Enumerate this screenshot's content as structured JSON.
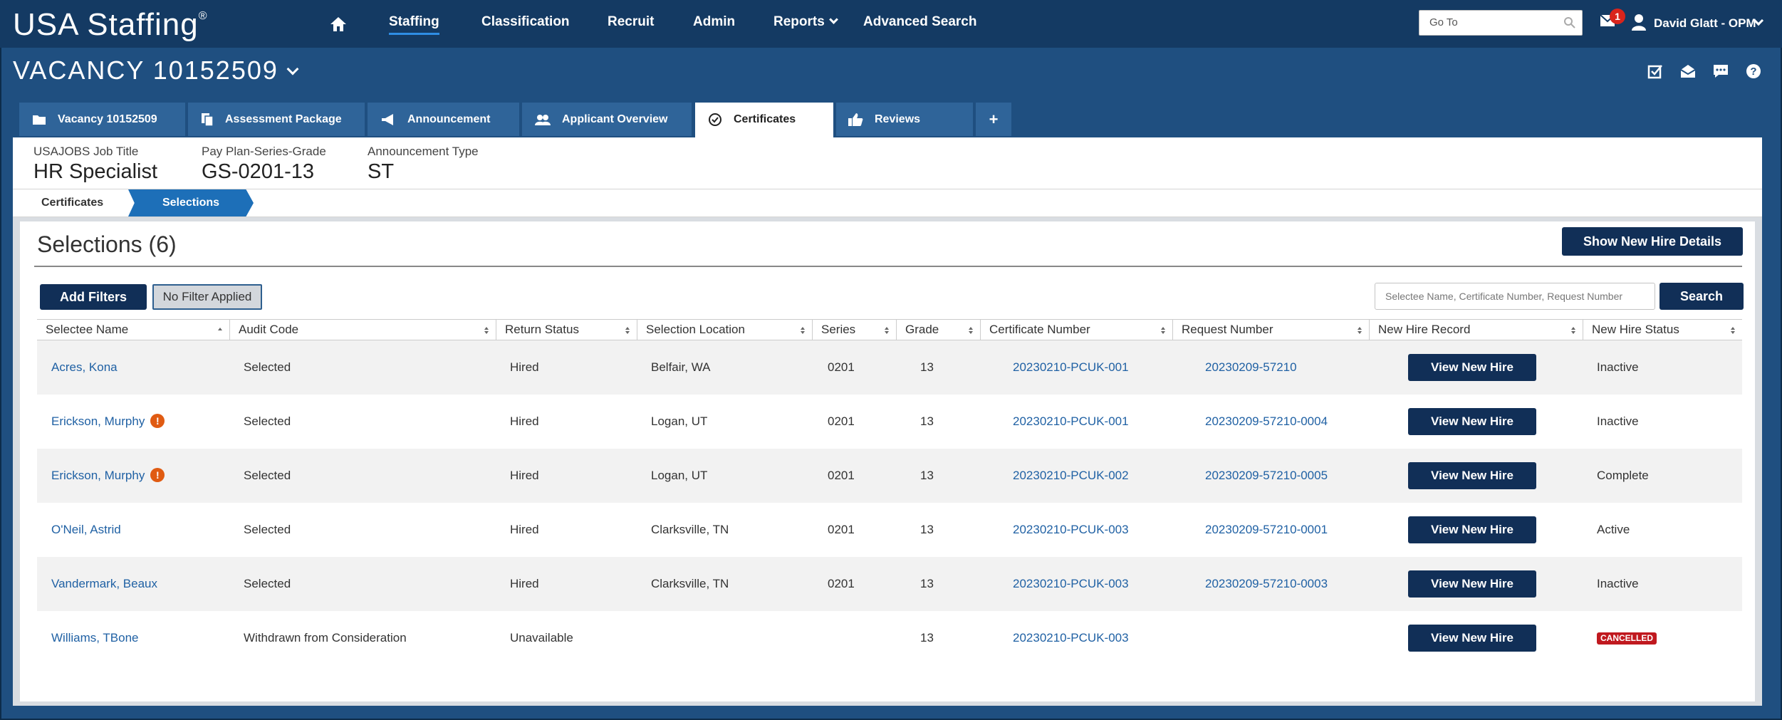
{
  "app": {
    "logo": "USA Staffing",
    "logo_mark": "®"
  },
  "nav": {
    "items": [
      {
        "label": "Staffing"
      },
      {
        "label": "Classification"
      },
      {
        "label": "Recruit"
      },
      {
        "label": "Admin"
      },
      {
        "label": "Reports"
      },
      {
        "label": "Advanced Search"
      }
    ],
    "active": "Staffing",
    "goto_placeholder": "Go To",
    "mail_badge": "1",
    "user": "David Glatt - OPM"
  },
  "vacancy": {
    "title": "VACANCY 10152509"
  },
  "header_icons": [
    "checkbox-icon",
    "mail-open-icon",
    "chat-icon",
    "help-icon"
  ],
  "tabs": [
    {
      "label": "Vacancy 10152509",
      "icon": "folder-icon"
    },
    {
      "label": "Assessment Package",
      "icon": "documents-icon"
    },
    {
      "label": "Announcement",
      "icon": "megaphone-icon"
    },
    {
      "label": "Applicant Overview",
      "icon": "users-icon"
    },
    {
      "label": "Certificates",
      "icon": "check-circle-icon"
    },
    {
      "label": "Reviews",
      "icon": "thumbs-up-icon"
    },
    {
      "label": "+",
      "icon": "plus-icon"
    }
  ],
  "active_tab": "Certificates",
  "info": {
    "job_title_label": "USAJOBS Job Title",
    "job_title": "HR Specialist",
    "pay_plan_label": "Pay Plan-Series-Grade",
    "pay_plan": "GS-0201-13",
    "announcement_type_label": "Announcement Type",
    "announcement_type": "ST"
  },
  "breadcrumb": {
    "first": "Certificates",
    "active": "Selections"
  },
  "selections": {
    "title": "Selections (6)",
    "show_new_hire_details": "Show New Hire Details",
    "add_filters": "Add Filters",
    "no_filter": "No Filter Applied",
    "search_placeholder": "Selectee Name, Certificate Number, Request Number",
    "search_button": "Search"
  },
  "table": {
    "columns": [
      "Selectee Name",
      "Audit Code",
      "Return Status",
      "Selection Location",
      "Series",
      "Grade",
      "Certificate Number",
      "Request Number",
      "New Hire Record",
      "New Hire Status"
    ],
    "button_label": "View New Hire",
    "rows": [
      {
        "name": "Acres, Kona",
        "alert": false,
        "audit": "Selected",
        "return": "Hired",
        "location": "Belfair, WA",
        "series": "0201",
        "grade": "13",
        "cert": "20230210-PCUK-001",
        "request": "20230209-57210",
        "status": "Inactive"
      },
      {
        "name": "Erickson, Murphy",
        "alert": true,
        "audit": "Selected",
        "return": "Hired",
        "location": "Logan, UT",
        "series": "0201",
        "grade": "13",
        "cert": "20230210-PCUK-001",
        "request": "20230209-57210-0004",
        "status": "Inactive"
      },
      {
        "name": "Erickson, Murphy",
        "alert": true,
        "audit": "Selected",
        "return": "Hired",
        "location": "Logan, UT",
        "series": "0201",
        "grade": "13",
        "cert": "20230210-PCUK-002",
        "request": "20230209-57210-0005",
        "status": "Complete"
      },
      {
        "name": "O'Neil, Astrid",
        "alert": false,
        "audit": "Selected",
        "return": "Hired",
        "location": "Clarksville, TN",
        "series": "0201",
        "grade": "13",
        "cert": "20230210-PCUK-003",
        "request": "20230209-57210-0001",
        "status": "Active"
      },
      {
        "name": "Vandermark, Beaux",
        "alert": false,
        "audit": "Selected",
        "return": "Hired",
        "location": "Clarksville, TN",
        "series": "0201",
        "grade": "13",
        "cert": "20230210-PCUK-003",
        "request": "20230209-57210-0003",
        "status": "Inactive"
      },
      {
        "name": "Williams, TBone",
        "alert": false,
        "audit": "Withdrawn from Consideration",
        "return": "Unavailable",
        "location": "",
        "series": "",
        "grade": "13",
        "cert": "20230210-PCUK-003",
        "request": "",
        "status": "CANCELLED",
        "status_badge": true
      }
    ]
  },
  "colors": {
    "nav_bg": "#143a63",
    "page_bg": "#1f4f80",
    "tab_bg": "#2f6499",
    "button": "#112f57",
    "link": "#2061a4",
    "alert": "#e05b12",
    "cancelled": "#c0191f",
    "crumb_active": "#1d6fb8"
  }
}
